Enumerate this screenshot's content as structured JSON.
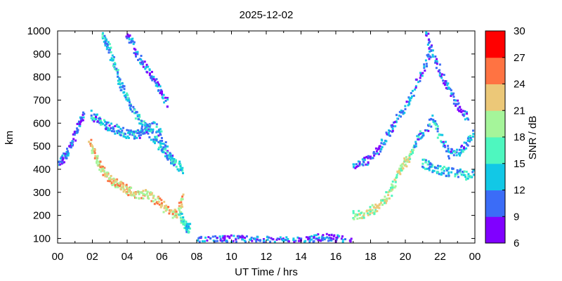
{
  "chart_data": {
    "type": "heatmap",
    "title": "2025-12-02",
    "xlabel": "UT Time / hrs",
    "ylabel": "km",
    "xlim": [
      0,
      24
    ],
    "ylim": [
      80,
      1000
    ],
    "x_tick_labels": [
      "00",
      "02",
      "04",
      "06",
      "08",
      "10",
      "12",
      "14",
      "16",
      "18",
      "20",
      "22",
      "00"
    ],
    "y_tick_labels": [
      "100",
      "200",
      "300",
      "400",
      "500",
      "600",
      "700",
      "800",
      "900",
      "1000"
    ],
    "colorbar": {
      "label": "SNR / dB",
      "range": [
        6,
        30
      ],
      "tick_labels": [
        "6",
        "9",
        "12",
        "15",
        "18",
        "21",
        "24",
        "27",
        "30"
      ],
      "colors": [
        "#8000ff",
        "#3b6cf7",
        "#12c8e6",
        "#4ef7bf",
        "#a5f59a",
        "#ecc878",
        "#ff7342",
        "#ff0000"
      ]
    },
    "traces": [
      {
        "x": [
          0.0,
          0.3,
          0.6,
          0.9,
          1.2,
          1.5
        ],
        "y": [
          430,
          455,
          490,
          540,
          600,
          660
        ],
        "snr": 10
      },
      {
        "x": [
          1.8,
          2.1,
          2.4,
          2.7,
          3.0,
          3.3,
          3.6,
          3.9,
          4.2,
          4.6,
          5.0,
          5.4,
          5.8,
          6.2,
          6.6,
          6.9,
          7.2
        ],
        "y": [
          520,
          470,
          420,
          385,
          360,
          340,
          330,
          318,
          305,
          295,
          295,
          285,
          260,
          230,
          210,
          220,
          300
        ],
        "snr": 22
      },
      {
        "x": [
          1.9,
          2.3,
          2.7,
          3.1,
          3.5,
          3.9,
          4.3,
          4.7,
          5.1,
          5.5,
          5.9,
          6.3,
          6.7
        ],
        "y": [
          640,
          620,
          600,
          585,
          570,
          560,
          555,
          560,
          580,
          590,
          550,
          470,
          420
        ],
        "snr": 12
      },
      {
        "x": [
          2.6,
          2.9,
          3.2,
          3.5,
          3.8,
          4.1,
          4.5,
          4.9,
          5.3,
          5.7,
          6.1,
          6.5,
          6.9,
          7.2
        ],
        "y": [
          980,
          930,
          860,
          790,
          730,
          690,
          640,
          600,
          560,
          520,
          480,
          440,
          420,
          400
        ],
        "snr": 13
      },
      {
        "x": [
          3.9,
          4.3,
          4.7,
          5.1,
          5.5,
          5.9,
          6.3
        ],
        "y": [
          990,
          940,
          880,
          830,
          790,
          740,
          680
        ],
        "snr": 10
      },
      {
        "x": [
          7.0,
          7.2,
          7.4,
          7.6
        ],
        "y": [
          200,
          170,
          150,
          148
        ],
        "snr": 15
      },
      {
        "x": [
          8.0,
          9.0,
          10.0,
          11.0,
          12.0,
          13.0,
          14.0,
          14.5,
          15.0,
          15.5,
          16.0,
          16.5,
          17.0
        ],
        "y": [
          90,
          95,
          98,
          95,
          92,
          90,
          88,
          95,
          105,
          105,
          100,
          92,
          88
        ],
        "snr": 10
      },
      {
        "x": [
          17.0,
          17.5,
          18.0,
          18.4,
          18.8,
          19.2,
          19.5,
          19.8,
          20.1,
          20.5
        ],
        "y": [
          205,
          210,
          225,
          245,
          275,
          320,
          380,
          420,
          450,
          500
        ],
        "snr": 20
      },
      {
        "x": [
          17.0,
          17.5,
          18.0,
          18.5,
          19.0,
          19.5,
          20.0,
          20.5,
          21.0,
          21.5
        ],
        "y": [
          420,
          430,
          455,
          500,
          560,
          620,
          680,
          760,
          850,
          930
        ],
        "snr": 11
      },
      {
        "x": [
          20.5,
          21.0,
          21.5,
          22.0,
          22.5,
          23.0,
          23.5,
          24.0
        ],
        "y": [
          520,
          560,
          620,
          540,
          470,
          480,
          520,
          580
        ],
        "snr": 12
      },
      {
        "x": [
          21.0,
          21.5,
          22.0,
          22.5,
          23.0,
          23.5,
          24.0
        ],
        "y": [
          430,
          410,
          400,
          390,
          385,
          380,
          380
        ],
        "snr": 14
      },
      {
        "x": [
          21.2,
          21.6,
          22.0,
          22.4,
          22.8,
          23.2,
          23.6
        ],
        "y": [
          980,
          900,
          820,
          760,
          700,
          650,
          620
        ],
        "snr": 10
      }
    ]
  }
}
